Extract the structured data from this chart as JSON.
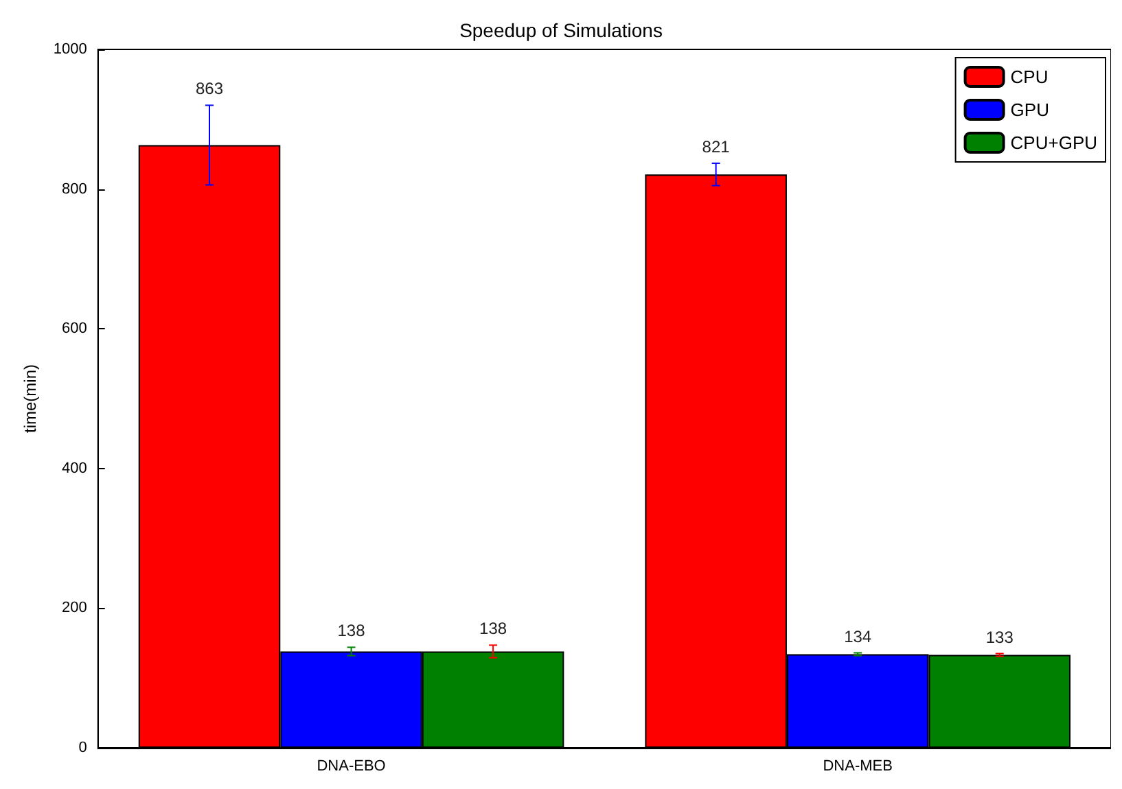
{
  "chart_data": {
    "type": "bar",
    "title": "Speedup of Simulations",
    "ylabel": "time(min)",
    "categories": [
      "DNA-EBO",
      "DNA-MEB"
    ],
    "series": [
      {
        "name": "CPU",
        "color": "#ff0000",
        "values": [
          863,
          821
        ],
        "errors": [
          57,
          16
        ]
      },
      {
        "name": "GPU",
        "color": "#0000ff",
        "values": [
          138,
          134
        ],
        "errors": [
          6,
          2
        ]
      },
      {
        "name": "CPU+GPU",
        "color": "#008000",
        "values": [
          138,
          133
        ],
        "errors": [
          9,
          2
        ]
      }
    ],
    "ylim": [
      0,
      1000
    ],
    "yticks": [
      0,
      200,
      400,
      600,
      800,
      1000
    ],
    "data_labels": true,
    "legend": "top right",
    "grid": false
  }
}
